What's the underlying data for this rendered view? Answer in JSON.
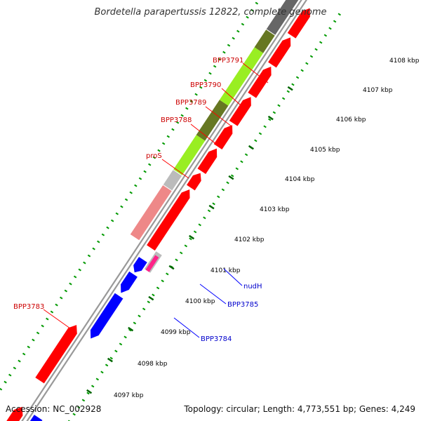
{
  "title": "Bordetella parapertussis 12822, complete genome",
  "footer": {
    "accession": "Accession: NC_002928",
    "summary": "Topology: circular; Length: 4,773,551 bp; Genes: 4,249"
  },
  "colors": {
    "background": "#ffffff",
    "backbone": "#999999",
    "tick_major": "#006600",
    "tick_minor": "#009900",
    "forward_red": "#ff0000",
    "reverse_blue": "#0000ff",
    "label_red": "#cc0000",
    "label_blue": "#0000cc",
    "green_light": "#99ee22",
    "green_olive": "#667722",
    "salmon": "#ee8888",
    "grey_gene": "#bbbbbb",
    "dark_grey": "#666666",
    "magenta": "#ff2288"
  },
  "scale": {
    "unit": "kbp",
    "labels": [
      "4097 kbp",
      "4098 kbp",
      "4099 kbp",
      "4100 kbp",
      "4101 kbp",
      "4102 kbp",
      "4103 kbp",
      "4104 kbp",
      "4105 kbp",
      "4106 kbp",
      "4107 kbp",
      "4108 kbp"
    ]
  },
  "features": [
    {
      "label": "BPP3791",
      "color": "red"
    },
    {
      "label": "BPP3790",
      "color": "red"
    },
    {
      "label": "BPP3789",
      "color": "red"
    },
    {
      "label": "BPP3788",
      "color": "red"
    },
    {
      "label": "proS",
      "color": "red"
    },
    {
      "label": "nudH",
      "color": "blue"
    },
    {
      "label": "BPP3785",
      "color": "blue"
    },
    {
      "label": "BPP3784",
      "color": "blue"
    },
    {
      "label": "BPP3783",
      "color": "red"
    }
  ]
}
